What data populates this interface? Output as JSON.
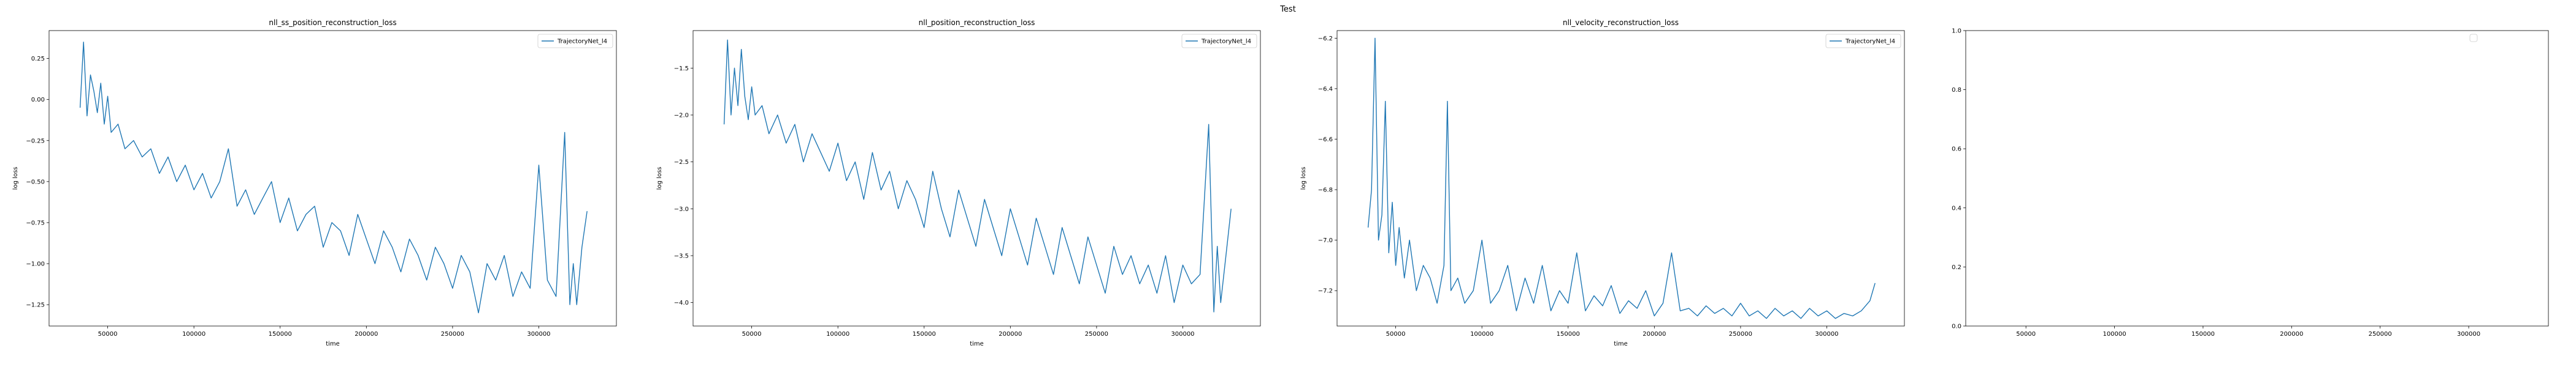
{
  "figure_title": "Test",
  "chart_data": [
    {
      "type": "line",
      "title": "nll_ss_position_reconstruction_loss",
      "xlabel": "time",
      "ylabel": "log loss",
      "xlim": [
        16000,
        345000
      ],
      "ylim": [
        -1.38,
        0.42
      ],
      "xticks": [
        50000,
        100000,
        150000,
        200000,
        250000,
        300000
      ],
      "yticks": [
        0.25,
        0.0,
        -0.25,
        -0.5,
        -0.75,
        -1.0,
        -1.25
      ],
      "ytick_labels": [
        "0.25",
        "0.00",
        "−0.25",
        "−0.50",
        "−0.75",
        "−1.00",
        "−1.25"
      ],
      "grid": false,
      "legend": "top-right",
      "series": [
        {
          "name": "TrajectoryNet_l4",
          "color": "#1f77b4",
          "x": [
            34000,
            36000,
            38000,
            40000,
            42000,
            44000,
            46000,
            48000,
            50000,
            52000,
            56000,
            60000,
            65000,
            70000,
            75000,
            80000,
            85000,
            90000,
            95000,
            100000,
            105000,
            110000,
            115000,
            120000,
            125000,
            130000,
            135000,
            140000,
            145000,
            150000,
            155000,
            160000,
            165000,
            170000,
            175000,
            180000,
            185000,
            190000,
            195000,
            200000,
            205000,
            210000,
            215000,
            220000,
            225000,
            230000,
            235000,
            240000,
            245000,
            250000,
            255000,
            260000,
            265000,
            270000,
            275000,
            280000,
            285000,
            290000,
            295000,
            300000,
            305000,
            310000,
            315000,
            318000,
            320000,
            322000,
            325000,
            328000
          ],
          "y": [
            -0.05,
            0.35,
            -0.1,
            0.15,
            0.05,
            -0.08,
            0.1,
            -0.15,
            0.02,
            -0.2,
            -0.15,
            -0.3,
            -0.25,
            -0.35,
            -0.3,
            -0.45,
            -0.35,
            -0.5,
            -0.4,
            -0.55,
            -0.45,
            -0.6,
            -0.5,
            -0.3,
            -0.65,
            -0.55,
            -0.7,
            -0.6,
            -0.5,
            -0.75,
            -0.6,
            -0.8,
            -0.7,
            -0.65,
            -0.9,
            -0.75,
            -0.8,
            -0.95,
            -0.7,
            -0.85,
            -1.0,
            -0.8,
            -0.9,
            -1.05,
            -0.85,
            -0.95,
            -1.1,
            -0.9,
            -1.0,
            -1.15,
            -0.95,
            -1.05,
            -1.3,
            -1.0,
            -1.1,
            -0.95,
            -1.2,
            -1.05,
            -1.15,
            -0.4,
            -1.1,
            -1.2,
            -0.2,
            -1.25,
            -1.0,
            -1.25,
            -0.9,
            -0.68
          ]
        }
      ]
    },
    {
      "type": "line",
      "title": "nll_position_reconstruction_loss",
      "xlabel": "time",
      "ylabel": "log loss",
      "xlim": [
        16000,
        345000
      ],
      "ylim": [
        -4.25,
        -1.1
      ],
      "xticks": [
        50000,
        100000,
        150000,
        200000,
        250000,
        300000
      ],
      "yticks": [
        -1.5,
        -2.0,
        -2.5,
        -3.0,
        -3.5,
        -4.0
      ],
      "ytick_labels": [
        "−1.5",
        "−2.0",
        "−2.5",
        "−3.0",
        "−3.5",
        "−4.0"
      ],
      "grid": false,
      "legend": "top-right",
      "series": [
        {
          "name": "TrajectoryNet_l4",
          "color": "#1f77b4",
          "x": [
            34000,
            36000,
            38000,
            40000,
            42000,
            44000,
            46000,
            48000,
            50000,
            52000,
            56000,
            60000,
            65000,
            70000,
            75000,
            80000,
            85000,
            90000,
            95000,
            100000,
            105000,
            110000,
            115000,
            120000,
            125000,
            130000,
            135000,
            140000,
            145000,
            150000,
            155000,
            160000,
            165000,
            170000,
            175000,
            180000,
            185000,
            190000,
            195000,
            200000,
            205000,
            210000,
            215000,
            220000,
            225000,
            230000,
            235000,
            240000,
            245000,
            250000,
            255000,
            260000,
            265000,
            270000,
            275000,
            280000,
            285000,
            290000,
            295000,
            300000,
            305000,
            310000,
            315000,
            318000,
            320000,
            322000,
            325000,
            328000
          ],
          "y": [
            -2.1,
            -1.2,
            -2.0,
            -1.5,
            -1.9,
            -1.3,
            -1.8,
            -2.05,
            -1.7,
            -2.0,
            -1.9,
            -2.2,
            -2.0,
            -2.3,
            -2.1,
            -2.5,
            -2.2,
            -2.4,
            -2.6,
            -2.3,
            -2.7,
            -2.5,
            -2.9,
            -2.4,
            -2.8,
            -2.6,
            -3.0,
            -2.7,
            -2.9,
            -3.2,
            -2.6,
            -3.0,
            -3.3,
            -2.8,
            -3.1,
            -3.4,
            -2.9,
            -3.2,
            -3.5,
            -3.0,
            -3.3,
            -3.6,
            -3.1,
            -3.4,
            -3.7,
            -3.2,
            -3.5,
            -3.8,
            -3.3,
            -3.6,
            -3.9,
            -3.4,
            -3.7,
            -3.5,
            -3.8,
            -3.6,
            -3.9,
            -3.5,
            -4.0,
            -3.6,
            -3.8,
            -3.7,
            -2.1,
            -4.1,
            -3.4,
            -4.0,
            -3.5,
            -3.0
          ]
        }
      ]
    },
    {
      "type": "line",
      "title": "nll_velocity_reconstruction_loss",
      "xlabel": "time",
      "ylabel": "log loss",
      "xlim": [
        16000,
        345000
      ],
      "ylim": [
        -7.34,
        -6.17
      ],
      "xticks": [
        50000,
        100000,
        150000,
        200000,
        250000,
        300000
      ],
      "yticks": [
        -6.2,
        -6.4,
        -6.6,
        -6.8,
        -7.0,
        -7.2
      ],
      "ytick_labels": [
        "−6.2",
        "−6.4",
        "−6.6",
        "−6.8",
        "−7.0",
        "−7.2"
      ],
      "grid": false,
      "legend": "top-right",
      "series": [
        {
          "name": "TrajectoryNet_l4",
          "color": "#1f77b4",
          "x": [
            34000,
            36000,
            38000,
            40000,
            42000,
            44000,
            46000,
            48000,
            50000,
            52000,
            55000,
            58000,
            62000,
            66000,
            70000,
            74000,
            78000,
            80000,
            82000,
            86000,
            90000,
            95000,
            100000,
            105000,
            110000,
            115000,
            120000,
            125000,
            130000,
            135000,
            140000,
            145000,
            150000,
            155000,
            160000,
            165000,
            170000,
            175000,
            180000,
            185000,
            190000,
            195000,
            200000,
            205000,
            210000,
            215000,
            220000,
            225000,
            230000,
            235000,
            240000,
            245000,
            250000,
            255000,
            260000,
            265000,
            270000,
            275000,
            280000,
            285000,
            290000,
            295000,
            300000,
            305000,
            310000,
            315000,
            320000,
            325000,
            328000
          ],
          "y": [
            -6.95,
            -6.8,
            -6.2,
            -7.0,
            -6.9,
            -6.45,
            -7.05,
            -6.85,
            -7.1,
            -6.95,
            -7.15,
            -7.0,
            -7.2,
            -7.1,
            -7.15,
            -7.25,
            -7.1,
            -6.45,
            -7.2,
            -7.15,
            -7.25,
            -7.2,
            -7.0,
            -7.25,
            -7.2,
            -7.1,
            -7.28,
            -7.15,
            -7.25,
            -7.1,
            -7.28,
            -7.2,
            -7.25,
            -7.05,
            -7.28,
            -7.22,
            -7.26,
            -7.18,
            -7.29,
            -7.24,
            -7.27,
            -7.2,
            -7.3,
            -7.25,
            -7.05,
            -7.28,
            -7.27,
            -7.3,
            -7.26,
            -7.29,
            -7.27,
            -7.3,
            -7.25,
            -7.3,
            -7.28,
            -7.31,
            -7.27,
            -7.3,
            -7.28,
            -7.31,
            -7.27,
            -7.3,
            -7.28,
            -7.31,
            -7.29,
            -7.3,
            -7.28,
            -7.24,
            -7.17
          ]
        }
      ]
    },
    {
      "type": "line",
      "title": "",
      "xlabel": "",
      "ylabel": "",
      "xlim": [
        16000,
        345000
      ],
      "ylim": [
        0,
        1
      ],
      "xticks": [
        50000,
        100000,
        150000,
        200000,
        250000,
        300000
      ],
      "yticks": [
        0.0,
        0.2,
        0.4,
        0.6,
        0.8,
        1.0
      ],
      "ytick_labels": [
        "0.0",
        "0.2",
        "0.4",
        "0.6",
        "0.8",
        "1.0"
      ],
      "grid": false,
      "legend": "top-right",
      "series": []
    }
  ]
}
